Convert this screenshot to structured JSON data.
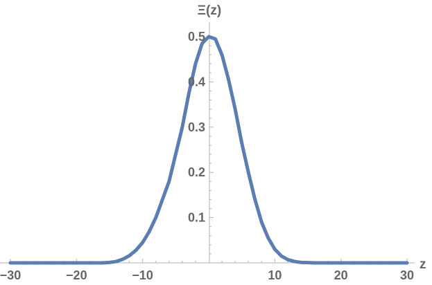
{
  "chart_data": {
    "type": "line",
    "title": "",
    "xlabel": "z",
    "ylabel": "Ξ(z)",
    "xlim": [
      -30,
      30
    ],
    "ylim": [
      0,
      0.5
    ],
    "x_ticks": [
      -30,
      -20,
      -10,
      10,
      20,
      30
    ],
    "x_tick_labels": [
      "−30",
      "−20",
      "−10",
      "10",
      "20",
      "30"
    ],
    "y_ticks": [
      0.1,
      0.2,
      0.3,
      0.4,
      0.5
    ],
    "y_tick_labels": [
      "0.1",
      "0.2",
      "0.3",
      "0.4",
      "0.5"
    ],
    "grid": false,
    "line_color": "#5b7db1",
    "axis_color": "#b3b3b3",
    "series": [
      {
        "x": [
          -30,
          -25,
          -20,
          -16,
          -15,
          -14,
          -13,
          -12,
          -11,
          -10,
          -9,
          -8,
          -7,
          -6,
          -5,
          -4,
          -3,
          -2,
          -1,
          0,
          1,
          2,
          3,
          4,
          5,
          6,
          7,
          8,
          9,
          10,
          11,
          12,
          13,
          14,
          15,
          16,
          20,
          25,
          30
        ],
        "y": [
          0,
          0,
          0,
          0,
          0.001,
          0.003,
          0.008,
          0.016,
          0.028,
          0.045,
          0.069,
          0.1,
          0.14,
          0.18,
          0.24,
          0.3,
          0.375,
          0.44,
          0.485,
          0.5,
          0.495,
          0.46,
          0.405,
          0.34,
          0.265,
          0.2,
          0.14,
          0.09,
          0.055,
          0.03,
          0.015,
          0.007,
          0.003,
          0.001,
          0.0005,
          0,
          0,
          0,
          0
        ]
      }
    ]
  }
}
